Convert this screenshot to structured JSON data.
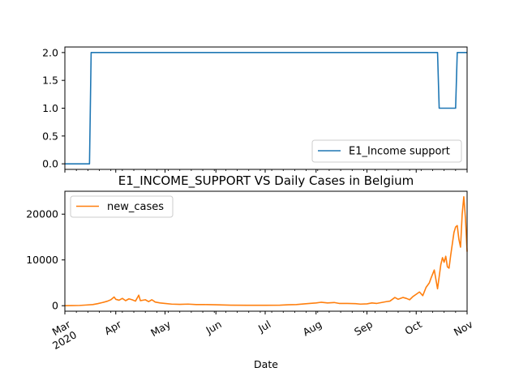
{
  "chart_data": [
    {
      "type": "line",
      "title": "",
      "xlabel": "",
      "ylabel": "",
      "ylim": [
        -0.1,
        2.1
      ],
      "yticks": [
        "0.0",
        "0.5",
        "1.0",
        "1.5",
        "2.0"
      ],
      "grid": false,
      "legend": "lower-right",
      "series": [
        {
          "name": "E1_Income support",
          "color": "#1f77b4",
          "points": [
            [
              "2020-03-01",
              0
            ],
            [
              "2020-03-16",
              0
            ],
            [
              "2020-03-17",
              2
            ],
            [
              "2020-10-14",
              2
            ],
            [
              "2020-10-15",
              1
            ],
            [
              "2020-10-25",
              1
            ],
            [
              "2020-10-26",
              2
            ],
            [
              "2020-11-01",
              2
            ]
          ]
        }
      ]
    },
    {
      "type": "line",
      "title": "E1_INCOME_SUPPORT VS Daily Cases in Belgium",
      "xlabel": "Date",
      "ylabel": "",
      "ylim": [
        -1200,
        25000
      ],
      "yticks": [
        "0",
        "10000",
        "20000"
      ],
      "xticks": [
        "Mar\n2020",
        "Apr",
        "May",
        "Jun",
        "Jul",
        "Aug",
        "Sep",
        "Oct",
        "Nov"
      ],
      "grid": false,
      "legend": "upper-left",
      "series": [
        {
          "name": "new_cases",
          "color": "#ff7f0e",
          "points": [
            [
              "2020-03-01",
              2
            ],
            [
              "2020-03-05",
              20
            ],
            [
              "2020-03-10",
              60
            ],
            [
              "2020-03-14",
              150
            ],
            [
              "2020-03-18",
              250
            ],
            [
              "2020-03-21",
              450
            ],
            [
              "2020-03-24",
              700
            ],
            [
              "2020-03-27",
              1000
            ],
            [
              "2020-03-29",
              1300
            ],
            [
              "2020-03-31",
              1900
            ],
            [
              "2020-04-01",
              1400
            ],
            [
              "2020-04-03",
              1200
            ],
            [
              "2020-04-05",
              1600
            ],
            [
              "2020-04-07",
              1100
            ],
            [
              "2020-04-09",
              1500
            ],
            [
              "2020-04-11",
              1300
            ],
            [
              "2020-04-13",
              1000
            ],
            [
              "2020-04-15",
              2300
            ],
            [
              "2020-04-16",
              1100
            ],
            [
              "2020-04-19",
              1300
            ],
            [
              "2020-04-21",
              900
            ],
            [
              "2020-04-23",
              1300
            ],
            [
              "2020-04-25",
              800
            ],
            [
              "2020-04-28",
              600
            ],
            [
              "2020-05-01",
              500
            ],
            [
              "2020-05-05",
              350
            ],
            [
              "2020-05-10",
              300
            ],
            [
              "2020-05-15",
              350
            ],
            [
              "2020-05-20",
              250
            ],
            [
              "2020-05-25",
              250
            ],
            [
              "2020-06-01",
              200
            ],
            [
              "2020-06-10",
              120
            ],
            [
              "2020-06-20",
              100
            ],
            [
              "2020-07-01",
              100
            ],
            [
              "2020-07-10",
              120
            ],
            [
              "2020-07-15",
              200
            ],
            [
              "2020-07-20",
              250
            ],
            [
              "2020-07-25",
              400
            ],
            [
              "2020-07-28",
              500
            ],
            [
              "2020-08-01",
              600
            ],
            [
              "2020-08-04",
              750
            ],
            [
              "2020-08-08",
              600
            ],
            [
              "2020-08-12",
              700
            ],
            [
              "2020-08-15",
              500
            ],
            [
              "2020-08-20",
              500
            ],
            [
              "2020-08-25",
              450
            ],
            [
              "2020-08-28",
              350
            ],
            [
              "2020-09-01",
              400
            ],
            [
              "2020-09-04",
              600
            ],
            [
              "2020-09-07",
              500
            ],
            [
              "2020-09-10",
              700
            ],
            [
              "2020-09-13",
              900
            ],
            [
              "2020-09-15",
              1000
            ],
            [
              "2020-09-18",
              1800
            ],
            [
              "2020-09-20",
              1400
            ],
            [
              "2020-09-23",
              1800
            ],
            [
              "2020-09-25",
              1600
            ],
            [
              "2020-09-27",
              1300
            ],
            [
              "2020-09-29",
              2000
            ],
            [
              "2020-10-01",
              2500
            ],
            [
              "2020-10-03",
              3000
            ],
            [
              "2020-10-05",
              2200
            ],
            [
              "2020-10-07",
              4000
            ],
            [
              "2020-10-09",
              5000
            ],
            [
              "2020-10-10",
              6000
            ],
            [
              "2020-10-12",
              7800
            ],
            [
              "2020-10-14",
              3700
            ],
            [
              "2020-10-16",
              9000
            ],
            [
              "2020-10-17",
              10500
            ],
            [
              "2020-10-18",
              9500
            ],
            [
              "2020-10-19",
              10800
            ],
            [
              "2020-10-20",
              8500
            ],
            [
              "2020-10-21",
              8200
            ],
            [
              "2020-10-22",
              11000
            ],
            [
              "2020-10-24",
              16000
            ],
            [
              "2020-10-25",
              17200
            ],
            [
              "2020-10-26",
              17500
            ],
            [
              "2020-10-27",
              14500
            ],
            [
              "2020-10-28",
              12800
            ],
            [
              "2020-10-29",
              20000
            ],
            [
              "2020-10-30",
              23800
            ],
            [
              "2020-10-31",
              19000
            ],
            [
              "2020-11-01",
              11800
            ]
          ]
        }
      ]
    }
  ]
}
